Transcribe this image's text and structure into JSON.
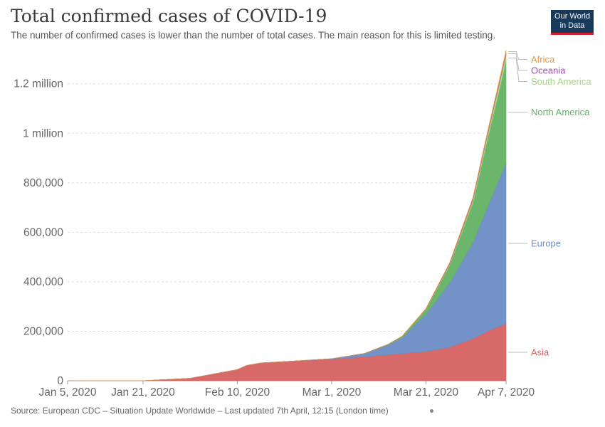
{
  "title": "Total confirmed cases of COVID-19",
  "subtitle": "The number of confirmed cases is lower than the number of total cases. The main reason for this is limited testing.",
  "logo": {
    "line1": "Our World",
    "line2": "in Data"
  },
  "source": "Source: European CDC – Situation Update Worldwide – Last updated 7th April, 12:15 (London time)",
  "chart_data": {
    "type": "area",
    "stacked": true,
    "title": "Total confirmed cases of COVID-19",
    "x": [
      "2020-01-05",
      "2020-01-21",
      "2020-01-31",
      "2020-02-10",
      "2020-02-12",
      "2020-02-15",
      "2020-02-20",
      "2020-03-01",
      "2020-03-08",
      "2020-03-13",
      "2020-03-16",
      "2020-03-21",
      "2020-03-26",
      "2020-03-31",
      "2020-04-03",
      "2020-04-07"
    ],
    "x_ticks": [
      "Jan 5, 2020",
      "Jan 21, 2020",
      "Feb 10, 2020",
      "Mar 1, 2020",
      "Mar 21, 2020",
      "Apr 7, 2020"
    ],
    "y_ticks": [
      "0",
      "200,000",
      "400,000",
      "600,000",
      "800,000",
      "1 million",
      "1.2 million"
    ],
    "y_tick_values": [
      0,
      200000,
      400000,
      600000,
      800000,
      1000000,
      1200000
    ],
    "ylim": [
      0,
      1320000
    ],
    "grid": "horizontal dashed",
    "legend": "right, inline labels",
    "series": [
      {
        "name": "Asia",
        "color": "#d66161",
        "values": [
          0,
          300,
          10000,
          45000,
          62000,
          72000,
          77000,
          87000,
          97000,
          105000,
          110000,
          118000,
          135000,
          170000,
          200000,
          230000
        ]
      },
      {
        "name": "Europe",
        "color": "#6c8dc5",
        "values": [
          0,
          0,
          10,
          50,
          50,
          50,
          300,
          2000,
          13000,
          40000,
          65000,
          150000,
          260000,
          390000,
          500000,
          650000
        ]
      },
      {
        "name": "North America",
        "color": "#63b262",
        "values": [
          0,
          5,
          10,
          15,
          15,
          15,
          20,
          100,
          500,
          2000,
          5000,
          20000,
          70000,
          160000,
          270000,
          410000
        ]
      },
      {
        "name": "South America",
        "color": "#a6d38a",
        "values": [
          0,
          0,
          0,
          0,
          0,
          0,
          0,
          0,
          10,
          100,
          300,
          1500,
          5000,
          12000,
          18000,
          28000
        ]
      },
      {
        "name": "Oceania",
        "color": "#a24db5",
        "values": [
          0,
          0,
          5,
          15,
          15,
          15,
          15,
          30,
          80,
          300,
          500,
          1600,
          3000,
          5000,
          6000,
          7000
        ]
      },
      {
        "name": "Africa",
        "color": "#e89a3a",
        "values": [
          0,
          0,
          0,
          0,
          0,
          0,
          0,
          5,
          50,
          200,
          400,
          1200,
          3000,
          5500,
          7500,
          10000
        ]
      }
    ]
  }
}
